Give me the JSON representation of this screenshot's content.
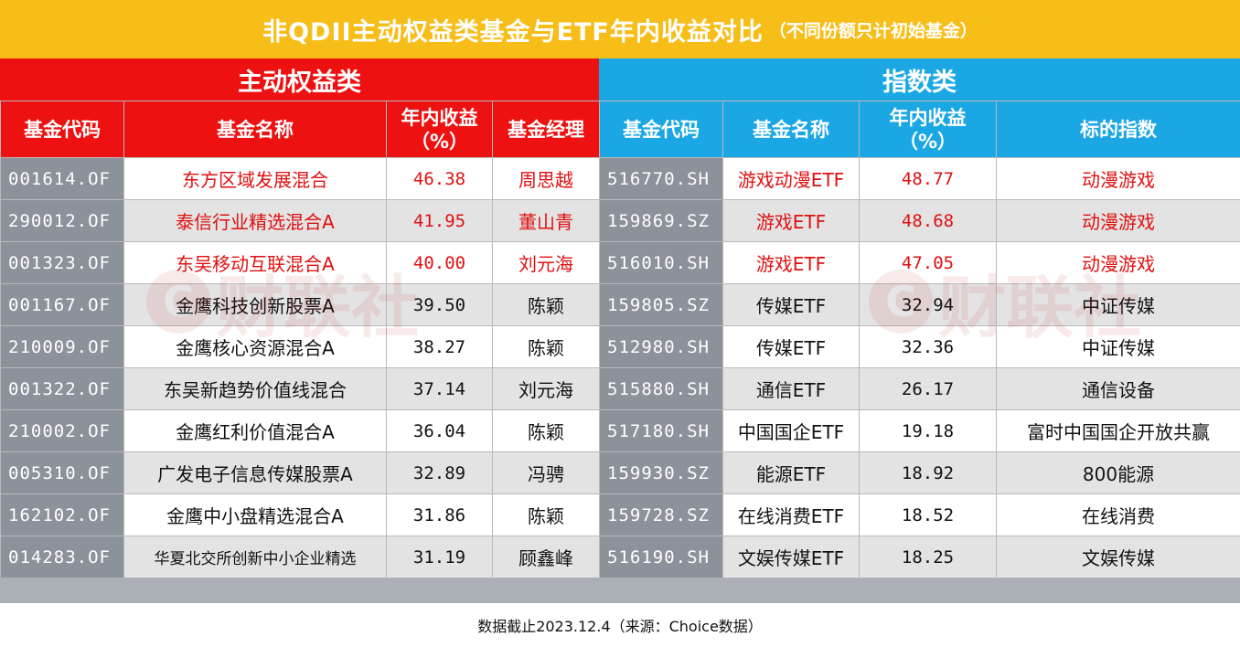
{
  "title": {
    "main": "非QDII主动权益类基金与ETF年内收益对比",
    "sub": "（不同份额只计初始基金）"
  },
  "sections": {
    "left": "主动权益类",
    "right": "指数类"
  },
  "headers": {
    "left": [
      "基金代码",
      "基金名称",
      "年内收益\n（%）",
      "基金经理"
    ],
    "right": [
      "基金代码",
      "基金名称",
      "年内收益\n（%）",
      "标的指数"
    ]
  },
  "watermark": "财联社",
  "footer": "数据截止2023.12.4（来源：Choice数据）",
  "colors": {
    "title_bg": "#f7bd18",
    "left_header_bg": "#ee1111",
    "right_header_bg": "#1ba7e4",
    "code_column_bg": "#8c9299",
    "highlight_text": "#e01010"
  },
  "chart_data": {
    "type": "table",
    "title": "非QDII主动权益类基金与ETF年内收益对比",
    "active_funds": [
      {
        "code": "001614.OF",
        "name": "东方区域发展混合",
        "return": "46.38",
        "manager": "周思越"
      },
      {
        "code": "290012.OF",
        "name": "泰信行业精选混合A",
        "return": "41.95",
        "manager": "董山青"
      },
      {
        "code": "001323.OF",
        "name": "东吴移动互联混合A",
        "return": "40.00",
        "manager": "刘元海"
      },
      {
        "code": "001167.OF",
        "name": "金鹰科技创新股票A",
        "return": "39.50",
        "manager": "陈颖"
      },
      {
        "code": "210009.OF",
        "name": "金鹰核心资源混合A",
        "return": "38.27",
        "manager": "陈颖"
      },
      {
        "code": "001322.OF",
        "name": "东吴新趋势价值线混合",
        "return": "37.14",
        "manager": "刘元海"
      },
      {
        "code": "210002.OF",
        "name": "金鹰红利价值混合A",
        "return": "36.04",
        "manager": "陈颖"
      },
      {
        "code": "005310.OF",
        "name": "广发电子信息传媒股票A",
        "return": "32.89",
        "manager": "冯骋"
      },
      {
        "code": "162102.OF",
        "name": "金鹰中小盘精选混合A",
        "return": "31.86",
        "manager": "陈颖"
      },
      {
        "code": "014283.OF",
        "name": "华夏北交所创新中小企业精选",
        "return": "31.19",
        "manager": "顾鑫峰"
      }
    ],
    "index_funds": [
      {
        "code": "516770.SH",
        "name": "游戏动漫ETF",
        "return": "48.77",
        "index": "动漫游戏"
      },
      {
        "code": "159869.SZ",
        "name": "游戏ETF",
        "return": "48.68",
        "index": "动漫游戏"
      },
      {
        "code": "516010.SH",
        "name": "游戏ETF",
        "return": "47.05",
        "index": "动漫游戏"
      },
      {
        "code": "159805.SZ",
        "name": "传媒ETF",
        "return": "32.94",
        "index": "中证传媒"
      },
      {
        "code": "512980.SH",
        "name": "传媒ETF",
        "return": "32.36",
        "index": "中证传媒"
      },
      {
        "code": "515880.SH",
        "name": "通信ETF",
        "return": "26.17",
        "index": "通信设备"
      },
      {
        "code": "517180.SH",
        "name": "中国国企ETF",
        "return": "19.18",
        "index": "富时中国国企开放共赢"
      },
      {
        "code": "159930.SZ",
        "name": "能源ETF",
        "return": "18.92",
        "index": "800能源"
      },
      {
        "code": "159728.SZ",
        "name": "在线消费ETF",
        "return": "18.52",
        "index": "在线消费"
      },
      {
        "code": "516190.SH",
        "name": "文娱传媒ETF",
        "return": "18.25",
        "index": "文娱传媒"
      }
    ],
    "highlighted_rows": 3
  }
}
